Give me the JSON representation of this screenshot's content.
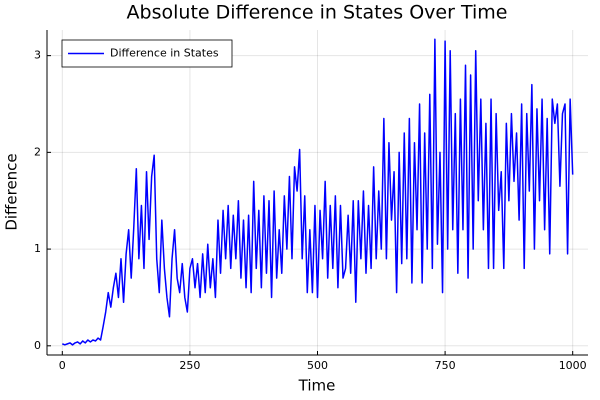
{
  "chart_data": {
    "type": "line",
    "title": "Absolute Difference in States Over Time",
    "x_label": "Time",
    "y_label": "Difference",
    "x": [
      0,
      5,
      10,
      15,
      20,
      25,
      30,
      35,
      40,
      45,
      50,
      55,
      60,
      65,
      70,
      75,
      80,
      85,
      90,
      95,
      100,
      105,
      110,
      115,
      120,
      125,
      130,
      135,
      140,
      145,
      150,
      155,
      160,
      165,
      170,
      175,
      180,
      185,
      190,
      195,
      200,
      205,
      210,
      215,
      220,
      225,
      230,
      235,
      240,
      245,
      250,
      255,
      260,
      265,
      270,
      275,
      280,
      285,
      290,
      295,
      300,
      305,
      310,
      315,
      320,
      325,
      330,
      335,
      340,
      345,
      350,
      355,
      360,
      365,
      370,
      375,
      380,
      385,
      390,
      395,
      400,
      405,
      410,
      415,
      420,
      425,
      430,
      435,
      440,
      445,
      450,
      455,
      460,
      465,
      470,
      475,
      480,
      485,
      490,
      495,
      500,
      505,
      510,
      515,
      520,
      525,
      530,
      535,
      540,
      545,
      550,
      555,
      560,
      565,
      570,
      575,
      580,
      585,
      590,
      595,
      600,
      605,
      610,
      615,
      620,
      625,
      630,
      635,
      640,
      645,
      650,
      655,
      660,
      665,
      670,
      675,
      680,
      685,
      690,
      695,
      700,
      705,
      710,
      715,
      720,
      725,
      730,
      735,
      740,
      745,
      750,
      755,
      760,
      765,
      770,
      775,
      780,
      785,
      790,
      795,
      800,
      805,
      810,
      815,
      820,
      825,
      830,
      835,
      840,
      845,
      850,
      855,
      860,
      865,
      870,
      875,
      880,
      885,
      890,
      895,
      900,
      905,
      910,
      915,
      920,
      925,
      930,
      935,
      940,
      945,
      950,
      955,
      960,
      965,
      970,
      975,
      980,
      985,
      990,
      995,
      1000
    ],
    "series": [
      {
        "name": "Difference in States",
        "color": "#0000ff",
        "values": [
          0.02,
          0.01,
          0.02,
          0.03,
          0.01,
          0.03,
          0.04,
          0.02,
          0.05,
          0.03,
          0.06,
          0.04,
          0.06,
          0.05,
          0.08,
          0.06,
          0.2,
          0.35,
          0.55,
          0.4,
          0.6,
          0.75,
          0.5,
          0.9,
          0.45,
          0.95,
          1.2,
          0.7,
          1.22,
          1.83,
          0.9,
          1.45,
          0.8,
          1.8,
          1.1,
          1.75,
          1.97,
          0.9,
          0.55,
          1.3,
          0.8,
          0.5,
          0.3,
          0.9,
          1.2,
          0.7,
          0.55,
          0.85,
          0.5,
          0.35,
          0.8,
          0.9,
          0.6,
          0.85,
          0.5,
          0.95,
          0.55,
          1.05,
          0.6,
          0.9,
          0.5,
          1.3,
          0.75,
          1.4,
          0.9,
          1.45,
          0.8,
          1.35,
          0.9,
          1.5,
          0.7,
          1.3,
          0.6,
          1.35,
          0.55,
          1.7,
          0.8,
          1.4,
          0.6,
          1.55,
          0.75,
          1.5,
          0.5,
          1.6,
          0.7,
          1.2,
          0.75,
          1.55,
          1.0,
          1.75,
          0.9,
          1.85,
          1.6,
          2.03,
          0.9,
          1.55,
          0.55,
          1.2,
          0.55,
          1.45,
          0.5,
          1.4,
          0.9,
          1.7,
          0.7,
          1.45,
          0.8,
          1.55,
          0.6,
          1.45,
          0.7,
          0.8,
          1.35,
          0.75,
          1.5,
          0.45,
          1.5,
          0.9,
          1.6,
          0.75,
          1.45,
          0.8,
          1.85,
          0.9,
          1.6,
          1.0,
          2.35,
          0.9,
          2.1,
          1.3,
          1.8,
          0.55,
          2.0,
          0.85,
          2.2,
          0.9,
          2.35,
          0.65,
          2.1,
          1.2,
          2.5,
          0.65,
          2.2,
          1.0,
          2.6,
          0.8,
          3.17,
          1.05,
          2.0,
          0.55,
          3.15,
          1.0,
          3.05,
          1.2,
          2.4,
          0.75,
          2.55,
          1.2,
          2.9,
          0.7,
          2.8,
          1.0,
          3.05,
          1.5,
          2.55,
          1.2,
          2.3,
          0.8,
          2.55,
          0.8,
          2.4,
          1.4,
          1.8,
          0.8,
          2.3,
          1.5,
          2.4,
          1.7,
          2.2,
          1.3,
          2.5,
          0.8,
          2.4,
          1.6,
          2.7,
          1.0,
          2.45,
          1.5,
          2.55,
          1.2,
          2.35,
          0.95,
          2.55,
          2.3,
          2.5,
          1.65,
          2.4,
          2.5,
          0.95,
          2.55,
          1.77
        ]
      }
    ],
    "xlim": [
      -30,
      1030
    ],
    "xticks": [
      0,
      250,
      500,
      750,
      1000
    ],
    "ylim": [
      -0.095,
      3.265
    ],
    "yticks": [
      0,
      1,
      2,
      3
    ],
    "grid": true,
    "legend_position": "top-left"
  }
}
